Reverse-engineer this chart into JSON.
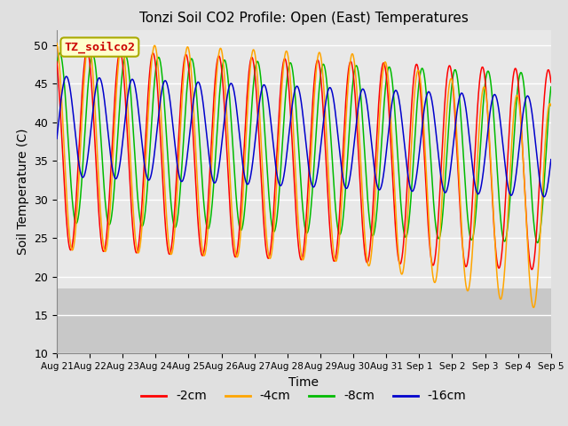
{
  "title": "Tonzi Soil CO2 Profile: Open (East) Temperatures",
  "xlabel": "Time",
  "ylabel": "Soil Temperature (C)",
  "ylim": [
    10,
    52
  ],
  "yticks": [
    10,
    15,
    20,
    25,
    30,
    35,
    40,
    45,
    50
  ],
  "bg_color": "#e0e0e0",
  "plot_bg_color": "#e8e8e8",
  "grid_color": "#ffffff",
  "series": [
    {
      "label": "-2cm",
      "color": "#ff0000"
    },
    {
      "label": "-4cm",
      "color": "#ffa500"
    },
    {
      "label": "-8cm",
      "color": "#00bb00"
    },
    {
      "label": "-16cm",
      "color": "#0000cc"
    }
  ],
  "x_tick_labels": [
    "Aug 21",
    "Aug 22",
    "Aug 23",
    "Aug 24",
    "Aug 25",
    "Aug 26",
    "Aug 27",
    "Aug 28",
    "Aug 29",
    "Aug 30",
    "Aug 31",
    "Sep 1",
    "Sep 2",
    "Sep 3",
    "Sep 4",
    "Sep 5"
  ],
  "annotation_text": "TZ_soilco2",
  "annotation_color": "#cc0000",
  "annotation_bg": "#ffffcc",
  "annotation_border": "#aaaa00"
}
